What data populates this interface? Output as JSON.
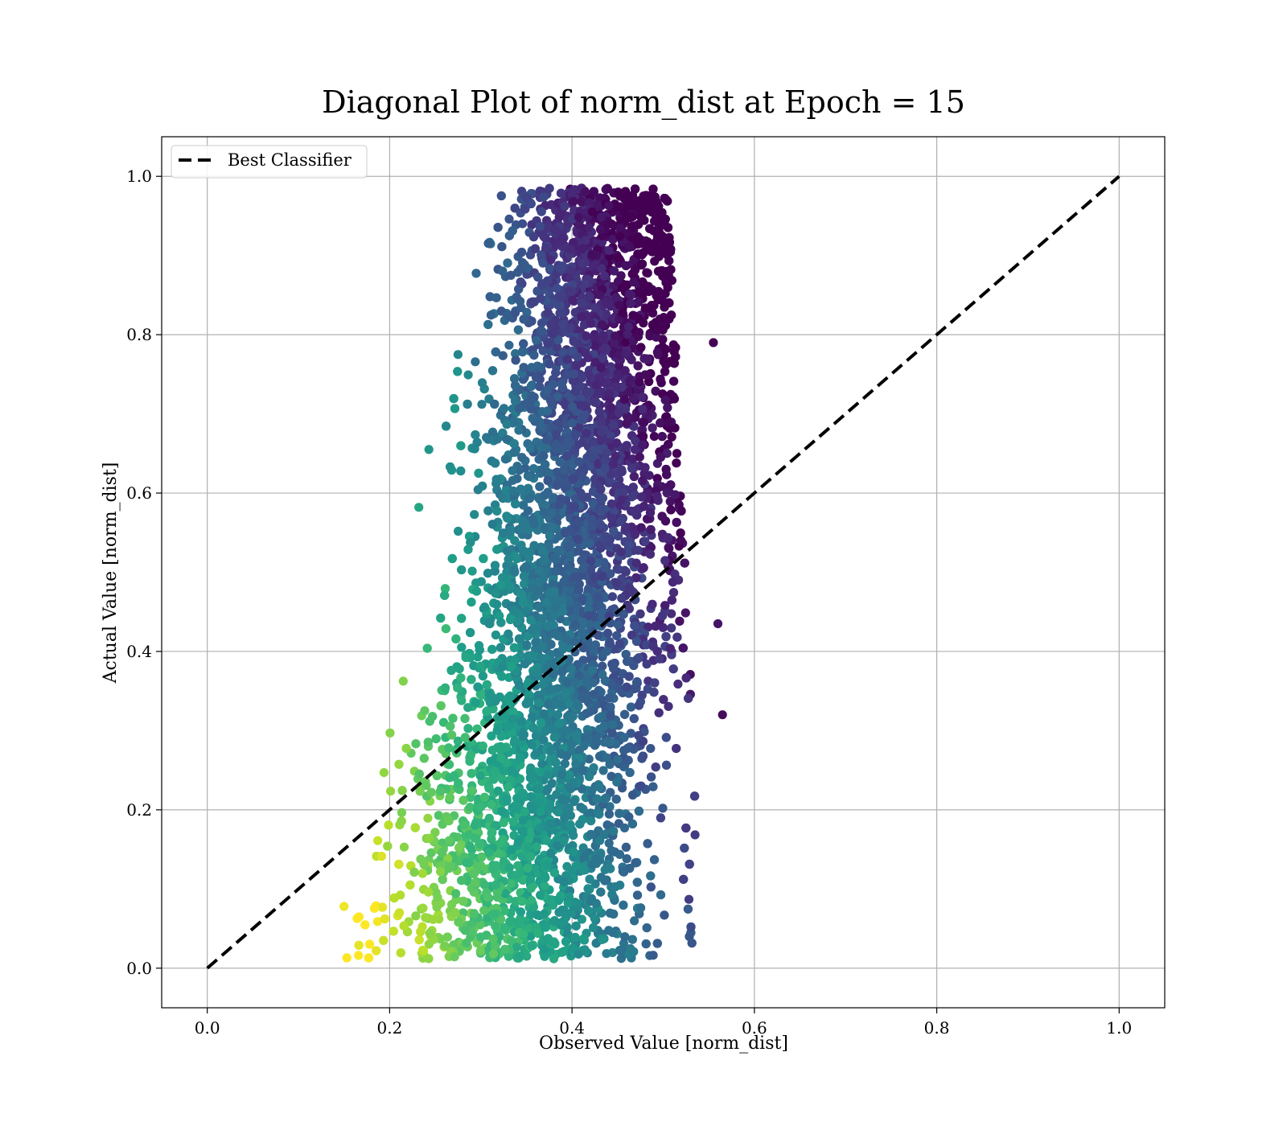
{
  "chart_data": {
    "type": "scatter",
    "title": "Diagonal Plot of norm_dist at Epoch = 15",
    "xlabel": "Observed Value [norm_dist]",
    "ylabel": "Actual Value [norm_dist]",
    "xlim": [
      -0.05,
      1.05
    ],
    "ylim": [
      -0.05,
      1.05
    ],
    "xticks": [
      "0.0",
      "0.2",
      "0.4",
      "0.6",
      "0.8",
      "1.0"
    ],
    "yticks": [
      "0.0",
      "0.2",
      "0.4",
      "0.6",
      "0.8",
      "1.0"
    ],
    "xtick_values": [
      0.0,
      0.2,
      0.4,
      0.6,
      0.8,
      1.0
    ],
    "ytick_values": [
      0.0,
      0.2,
      0.4,
      0.6,
      0.8,
      1.0
    ],
    "grid": true,
    "legend_position": "top-left",
    "colormap": "viridis",
    "reference_line": {
      "name": "Best Classifier",
      "x": [
        0.0,
        1.0
      ],
      "y": [
        0.0,
        1.0
      ],
      "style": "dashed",
      "color": "#000000"
    },
    "scatter_cloud": {
      "x_range": [
        0.15,
        0.565
      ],
      "y_range": [
        0.012,
        0.985
      ],
      "x_center": 0.43,
      "point_count_shown": 9000,
      "notable_points": [
        {
          "x": 0.565,
          "y": 0.32
        },
        {
          "x": 0.555,
          "y": 0.79
        },
        {
          "x": 0.275,
          "y": 0.775
        },
        {
          "x": 0.15,
          "y": 0.078
        },
        {
          "x": 0.232,
          "y": 0.582
        },
        {
          "x": 0.243,
          "y": 0.655
        },
        {
          "x": 0.56,
          "y": 0.435
        },
        {
          "x": 0.38,
          "y": 0.012
        }
      ]
    }
  }
}
